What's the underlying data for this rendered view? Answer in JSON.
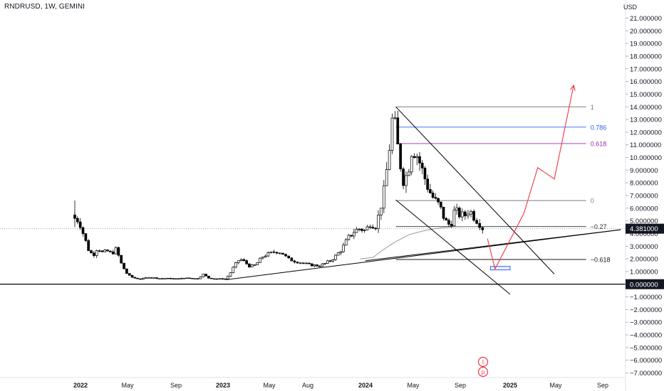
{
  "header": {
    "title": "RNDRUSD, 1W, GEMINI"
  },
  "price_scale": {
    "currency": "USD"
  },
  "chart_data": {
    "type": "candlestick",
    "symbol": "RNDRUSD",
    "interval": "1W",
    "exchange": "GEMINI",
    "ylim": [
      -7.0,
      21.0
    ],
    "y_ticks": [
      21,
      20,
      19,
      18,
      17,
      16,
      15,
      14,
      13,
      12,
      11,
      10,
      9,
      8,
      7,
      6,
      5,
      4,
      3,
      2,
      1,
      0,
      -1,
      -2,
      -3,
      -4,
      -5,
      -6,
      -7
    ],
    "y_tick_labels": [
      "21.000000",
      "20.000000",
      "19.000000",
      "18.000000",
      "17.000000",
      "16.000000",
      "15.000000",
      "14.000000",
      "13.000000",
      "12.000000",
      "11.000000",
      "10.000000",
      "9.000000",
      "8.000000",
      "7.000000",
      "6.000000",
      "5.000000",
      "4.000000",
      "3.000000",
      "2.000000",
      "1.000000",
      "0.000000",
      "−1.000000",
      "−2.000000",
      "−3.000000",
      "−4.000000",
      "−5.000000",
      "−6.000000",
      "−7.000000"
    ],
    "x_ticks": [
      {
        "label": "2022",
        "t": 2022.0
      },
      {
        "label": "May",
        "t": 2022.33
      },
      {
        "label": "Sep",
        "t": 2022.67
      },
      {
        "label": "2023",
        "t": 2023.0
      },
      {
        "label": "May",
        "t": 2023.33
      },
      {
        "label": "Aug",
        "t": 2023.58
      },
      {
        "label": "2024",
        "t": 2024.0
      },
      {
        "label": "May",
        "t": 2024.33
      },
      {
        "label": "Sep",
        "t": 2024.67
      },
      {
        "label": "2025",
        "t": 2025.0
      },
      {
        "label": "May",
        "t": 2025.33
      },
      {
        "label": "Sep",
        "t": 2025.67
      }
    ],
    "x_bold_labels": [
      "2022",
      "2023",
      "2024",
      "2025"
    ],
    "last_price": 4.381,
    "last_price_label": "4.381000",
    "zero_label": "0.000000",
    "trend_point_labels": [
      "t",
      "p"
    ],
    "anchors": [
      [
        2021.96,
        5.2
      ],
      [
        2021.99,
        5.0
      ],
      [
        2022.03,
        3.6
      ],
      [
        2022.06,
        2.6
      ],
      [
        2022.09,
        2.3
      ],
      [
        2022.12,
        2.9
      ],
      [
        2022.15,
        2.5
      ],
      [
        2022.19,
        2.6
      ],
      [
        2022.22,
        2.4
      ],
      [
        2022.25,
        2.8
      ],
      [
        2022.29,
        1.5
      ],
      [
        2022.33,
        0.75
      ],
      [
        2022.37,
        0.5
      ],
      [
        2022.42,
        0.4
      ],
      [
        2022.48,
        0.55
      ],
      [
        2022.55,
        0.45
      ],
      [
        2022.62,
        0.45
      ],
      [
        2022.68,
        0.42
      ],
      [
        2022.75,
        0.5
      ],
      [
        2022.82,
        0.42
      ],
      [
        2022.86,
        0.78
      ],
      [
        2022.9,
        0.48
      ],
      [
        2022.95,
        0.42
      ],
      [
        2023.0,
        0.42
      ],
      [
        2023.02,
        0.42
      ],
      [
        2023.05,
        0.85
      ],
      [
        2023.08,
        1.45
      ],
      [
        2023.12,
        2.0
      ],
      [
        2023.15,
        1.8
      ],
      [
        2023.19,
        1.4
      ],
      [
        2023.23,
        1.5
      ],
      [
        2023.26,
        1.9
      ],
      [
        2023.29,
        2.25
      ],
      [
        2023.33,
        2.4
      ],
      [
        2023.37,
        2.6
      ],
      [
        2023.41,
        2.5
      ],
      [
        2023.45,
        2.0
      ],
      [
        2023.5,
        1.8
      ],
      [
        2023.54,
        1.7
      ],
      [
        2023.58,
        1.55
      ],
      [
        2023.62,
        1.5
      ],
      [
        2023.66,
        1.45
      ],
      [
        2023.7,
        1.6
      ],
      [
        2023.75,
        1.9
      ],
      [
        2023.79,
        2.3
      ],
      [
        2023.83,
        2.8
      ],
      [
        2023.87,
        3.6
      ],
      [
        2023.92,
        4.2
      ],
      [
        2023.96,
        4.4
      ],
      [
        2024.0,
        4.2
      ],
      [
        2024.03,
        4.8
      ],
      [
        2024.07,
        4.6
      ],
      [
        2024.1,
        5.8
      ],
      [
        2024.13,
        7.5
      ],
      [
        2024.16,
        10.2
      ],
      [
        2024.19,
        13.5
      ],
      [
        2024.21,
        12.0
      ],
      [
        2024.23,
        10.2
      ],
      [
        2024.26,
        8.2
      ],
      [
        2024.29,
        8.7
      ],
      [
        2024.32,
        10.6
      ],
      [
        2024.35,
        10.4
      ],
      [
        2024.38,
        9.5
      ],
      [
        2024.41,
        8.5
      ],
      [
        2024.44,
        7.5
      ],
      [
        2024.48,
        6.7
      ],
      [
        2024.52,
        6.2
      ],
      [
        2024.56,
        5.0
      ],
      [
        2024.6,
        4.6
      ],
      [
        2024.63,
        5.9
      ],
      [
        2024.66,
        5.5
      ],
      [
        2024.7,
        5.4
      ],
      [
        2024.73,
        5.9
      ],
      [
        2024.76,
        5.3
      ],
      [
        2024.79,
        4.9
      ],
      [
        2024.82,
        4.38
      ]
    ],
    "moving_average": [
      [
        2023.96,
        2.0
      ],
      [
        2024.05,
        2.1
      ],
      [
        2024.12,
        2.7
      ],
      [
        2024.2,
        3.3
      ],
      [
        2024.3,
        3.9
      ],
      [
        2024.4,
        4.2
      ],
      [
        2024.5,
        4.4
      ],
      [
        2024.58,
        4.5
      ],
      [
        2024.68,
        4.55
      ],
      [
        2024.78,
        4.55
      ]
    ],
    "channel_upper": [
      [
        2024.21,
        14.0
      ],
      [
        2025.32,
        0.8
      ]
    ],
    "channel_lower": [
      [
        2024.21,
        6.65
      ],
      [
        2025.0,
        -0.8
      ]
    ],
    "support_line": [
      [
        2024.0,
        1.85
      ],
      [
        2025.8,
        4.3
      ]
    ],
    "ascending_support": [
      [
        2023.02,
        0.35
      ],
      [
        2025.8,
        4.3
      ]
    ],
    "projection_path": [
      [
        2024.85,
        3.6
      ],
      [
        2024.9,
        1.2
      ],
      [
        2025.1,
        5.6
      ],
      [
        2025.2,
        9.2
      ],
      [
        2025.32,
        8.3
      ],
      [
        2025.46,
        15.7
      ]
    ],
    "target_box": {
      "t0": 2024.87,
      "t1": 2025.0,
      "p0": 1.13,
      "p1": 1.4
    },
    "fib_levels": [
      {
        "label": "1",
        "value": 14.0,
        "color": "#787b86"
      },
      {
        "label": "0.786",
        "value": 12.4,
        "color": "#2962ff"
      },
      {
        "label": "0.618",
        "value": 11.1,
        "color": "#9c27b0"
      },
      {
        "label": "0",
        "value": 6.6,
        "color": "#787b86"
      },
      {
        "label": "−0.27",
        "value": 4.55,
        "color": "#2a2e39"
      },
      {
        "label": "−0.618",
        "value": 1.95,
        "color": "#131722"
      }
    ],
    "fib_start_t": 2024.21,
    "fib_end_t": 2025.55,
    "colors": {
      "candle": "#000000",
      "bull_fill": "#ffffff",
      "bear_fill": "#000000",
      "channel": "#000000",
      "projection": "#f23645",
      "moving_average": "#9598a1",
      "box": "#2962ff",
      "price_label_bg": "#131722",
      "badge": "#f23645"
    },
    "grid": false,
    "legend": "none"
  }
}
